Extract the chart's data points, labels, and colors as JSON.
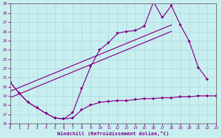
{
  "xlabel": "Windchill (Refroidissement éolien,°C)",
  "bg_color": "#c8eef0",
  "line_color": "#880088",
  "grid_color": "#a8d8dc",
  "xlim": [
    0,
    23
  ],
  "ylim": [
    16,
    29
  ],
  "xticks": [
    0,
    1,
    2,
    3,
    4,
    5,
    6,
    7,
    8,
    9,
    10,
    11,
    12,
    13,
    14,
    15,
    16,
    17,
    18,
    19,
    20,
    21,
    22,
    23
  ],
  "yticks": [
    16,
    17,
    18,
    19,
    20,
    21,
    22,
    23,
    24,
    25,
    26,
    27,
    28,
    29
  ],
  "line1_x": [
    0,
    1,
    2,
    3,
    4,
    5,
    6,
    7,
    8,
    9,
    10,
    11,
    12,
    13,
    14,
    15,
    16,
    17,
    18,
    19,
    20,
    21,
    22
  ],
  "line1_y": [
    20.5,
    19.3,
    18.3,
    17.7,
    17.1,
    16.6,
    16.5,
    17.2,
    19.8,
    22.2,
    24.0,
    24.8,
    25.8,
    26.0,
    26.1,
    26.6,
    29.2,
    27.5,
    28.8,
    26.7,
    24.9,
    22.1,
    20.8
  ],
  "line2_x": [
    0,
    1,
    2,
    3,
    4,
    5,
    6,
    7,
    8,
    9,
    10,
    11,
    12,
    13,
    14,
    15,
    16,
    17,
    18,
    19,
    20,
    21,
    22,
    23
  ],
  "line2_y": [
    20.5,
    19.3,
    18.3,
    17.7,
    17.1,
    16.6,
    16.5,
    16.6,
    17.5,
    18.0,
    18.3,
    18.4,
    18.5,
    18.5,
    18.6,
    18.7,
    18.7,
    18.8,
    18.8,
    18.9,
    18.9,
    19.0,
    19.0,
    19.0
  ],
  "line3_x": [
    1,
    22,
    23
  ],
  "line3_y": [
    19.3,
    20.8,
    19.0
  ],
  "trend1_x": [
    0,
    18
  ],
  "trend1_y": [
    19.5,
    26.7
  ],
  "trend2_x": [
    0,
    18
  ],
  "trend2_y": [
    18.8,
    26.0
  ]
}
